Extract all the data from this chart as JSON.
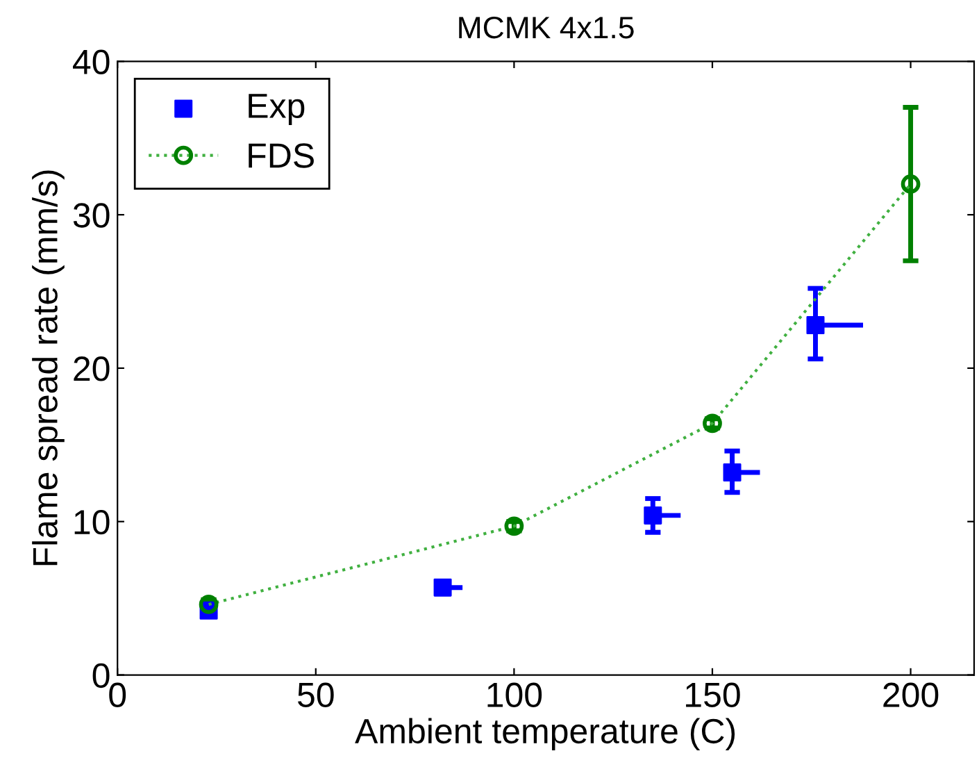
{
  "chart_data": {
    "type": "scatter",
    "title": "MCMK 4x1.5",
    "xlabel": "Ambient temperature (C)",
    "ylabel": "Flame spread rate (mm/s)",
    "xlim": [
      0,
      216
    ],
    "ylim": [
      0,
      40
    ],
    "xticks": [
      0,
      50,
      100,
      150,
      200
    ],
    "yticks": [
      0,
      10,
      20,
      30,
      40
    ],
    "grid": false,
    "legend": "top left",
    "series": [
      {
        "name": "Exp",
        "marker": "square",
        "color": "#0000ff",
        "x": [
          23,
          82,
          135,
          155,
          176
        ],
        "values": [
          4.2,
          5.7,
          10.4,
          13.2,
          22.8
        ],
        "errors": [
          0.3,
          0.4,
          [
            9.3,
            11.5
          ],
          [
            11.9,
            14.6
          ],
          [
            20.6,
            25.2
          ]
        ],
        "xerrors": [
          null,
          [
            82,
            87
          ],
          [
            135,
            142
          ],
          [
            155,
            162
          ],
          [
            176,
            188
          ]
        ]
      },
      {
        "name": "FDS",
        "type": "line",
        "marker": "circle",
        "line_style": "dotted",
        "color": "#008000",
        "x": [
          23,
          100,
          150,
          200
        ],
        "values": [
          4.6,
          9.7,
          16.4,
          32
        ],
        "errors": [
          0.3,
          0.3,
          0.3,
          [
            27,
            37
          ]
        ]
      }
    ]
  }
}
